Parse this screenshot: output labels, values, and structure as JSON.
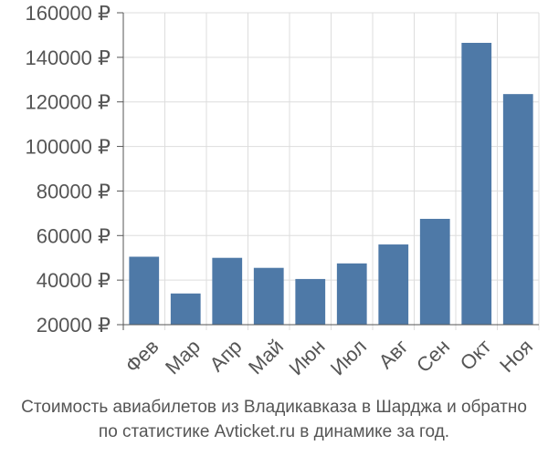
{
  "caption": {
    "line1": "Стоимость авиабилетов из Владикавказа в Шарджа и обратно",
    "line2": "по статистике Avticket.ru в динамике за год."
  },
  "colors": {
    "bar": "#4e79a7",
    "grid": "#dddddd",
    "axis": "#555555",
    "text": "#555555"
  },
  "chart_data": {
    "type": "bar",
    "categories": [
      "Фев",
      "Мар",
      "Апр",
      "Май",
      "Июн",
      "Июл",
      "Авг",
      "Сен",
      "Окт",
      "Ноя"
    ],
    "values": [
      50500,
      34000,
      50000,
      45500,
      40500,
      47500,
      56000,
      67500,
      146500,
      123500
    ],
    "y_ticks": [
      20000,
      40000,
      60000,
      80000,
      100000,
      120000,
      140000,
      160000
    ],
    "y_tick_labels": [
      "20000 ₽",
      "40000 ₽",
      "60000 ₽",
      "80000 ₽",
      "100000 ₽",
      "120000 ₽",
      "140000 ₽",
      "160000 ₽"
    ],
    "ylim": [
      20000,
      160000
    ],
    "grid": true,
    "xlabel": "",
    "ylabel": "",
    "title": ""
  }
}
